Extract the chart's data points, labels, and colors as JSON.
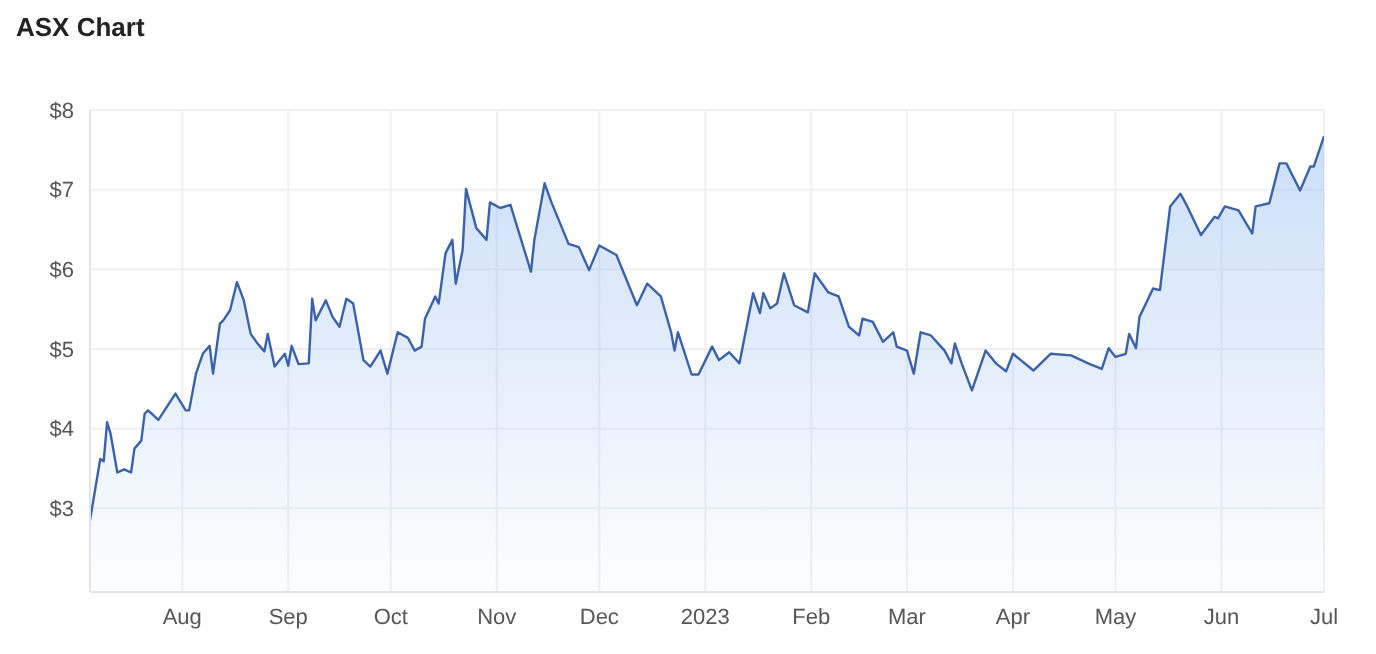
{
  "chart_data": {
    "type": "area",
    "title": "ASX Chart",
    "x": [
      "2022-07-05",
      "2022-07-08",
      "2022-07-09",
      "2022-07-10",
      "2022-07-11",
      "2022-07-13",
      "2022-07-15",
      "2022-07-17",
      "2022-07-18",
      "2022-07-20",
      "2022-07-21",
      "2022-07-22",
      "2022-07-25",
      "2022-07-30",
      "2022-08-02",
      "2022-08-03",
      "2022-08-05",
      "2022-08-07",
      "2022-08-09",
      "2022-08-10",
      "2022-08-12",
      "2022-08-13",
      "2022-08-15",
      "2022-08-17",
      "2022-08-19",
      "2022-08-21",
      "2022-08-23",
      "2022-08-25",
      "2022-08-26",
      "2022-08-28",
      "2022-08-31",
      "2022-09-01",
      "2022-09-02",
      "2022-09-04",
      "2022-09-07",
      "2022-09-08",
      "2022-09-09",
      "2022-09-12",
      "2022-09-14",
      "2022-09-16",
      "2022-09-18",
      "2022-09-20",
      "2022-09-23",
      "2022-09-25",
      "2022-09-28",
      "2022-09-30",
      "2022-10-03",
      "2022-10-06",
      "2022-10-08",
      "2022-10-10",
      "2022-10-11",
      "2022-10-14",
      "2022-10-15",
      "2022-10-17",
      "2022-10-19",
      "2022-10-20",
      "2022-10-22",
      "2022-10-23",
      "2022-10-26",
      "2022-10-29",
      "2022-10-30",
      "2022-11-02",
      "2022-11-05",
      "2022-11-11",
      "2022-11-12",
      "2022-11-15",
      "2022-11-17",
      "2022-11-22",
      "2022-11-25",
      "2022-11-28",
      "2022-12-01",
      "2022-12-06",
      "2022-12-12",
      "2022-12-15",
      "2022-12-19",
      "2022-12-22",
      "2022-12-23",
      "2022-12-24",
      "2022-12-28",
      "2022-12-30",
      "2023-01-03",
      "2023-01-05",
      "2023-01-08",
      "2023-01-11",
      "2023-01-15",
      "2023-01-17",
      "2023-01-18",
      "2023-01-20",
      "2023-01-22",
      "2023-01-24",
      "2023-01-27",
      "2023-01-31",
      "2023-02-02",
      "2023-02-06",
      "2023-02-09",
      "2023-02-12",
      "2023-02-15",
      "2023-02-16",
      "2023-02-19",
      "2023-02-22",
      "2023-02-25",
      "2023-02-26",
      "2023-03-01",
      "2023-03-03",
      "2023-03-05",
      "2023-03-08",
      "2023-03-12",
      "2023-03-14",
      "2023-03-15",
      "2023-03-17",
      "2023-03-20",
      "2023-03-24",
      "2023-03-27",
      "2023-03-30",
      "2023-04-01",
      "2023-04-07",
      "2023-04-12",
      "2023-04-18",
      "2023-04-23",
      "2023-04-27",
      "2023-04-29",
      "2023-05-01",
      "2023-05-04",
      "2023-05-05",
      "2023-05-07",
      "2023-05-08",
      "2023-05-12",
      "2023-05-14",
      "2023-05-17",
      "2023-05-20",
      "2023-05-22",
      "2023-05-26",
      "2023-05-30",
      "2023-05-31",
      "2023-06-02",
      "2023-06-06",
      "2023-06-10",
      "2023-06-11",
      "2023-06-15",
      "2023-06-18",
      "2023-06-20",
      "2023-06-24",
      "2023-06-27",
      "2023-06-28",
      "2023-07-01"
    ],
    "series": [
      {
        "color": "#3b62a8",
        "values": [
          2.85,
          3.62,
          3.59,
          4.08,
          3.94,
          3.45,
          3.49,
          3.45,
          3.75,
          3.85,
          4.19,
          4.23,
          4.11,
          4.44,
          4.23,
          4.23,
          4.69,
          4.94,
          5.04,
          4.69,
          5.32,
          5.36,
          5.49,
          5.84,
          5.61,
          5.19,
          5.07,
          4.97,
          5.19,
          4.78,
          4.94,
          4.79,
          5.04,
          4.81,
          4.82,
          5.63,
          5.36,
          5.61,
          5.4,
          5.28,
          5.63,
          5.57,
          4.86,
          4.78,
          4.98,
          4.69,
          5.21,
          5.14,
          4.98,
          5.03,
          5.38,
          5.66,
          5.57,
          6.2,
          6.37,
          5.82,
          6.24,
          7.01,
          6.52,
          6.37,
          6.84,
          6.77,
          6.81,
          5.97,
          6.37,
          7.08,
          6.84,
          6.32,
          6.28,
          5.99,
          6.3,
          6.18,
          5.55,
          5.82,
          5.66,
          5.21,
          4.98,
          5.21,
          4.68,
          4.68,
          5.03,
          4.86,
          4.96,
          4.82,
          5.7,
          5.45,
          5.7,
          5.51,
          5.57,
          5.95,
          5.55,
          5.46,
          5.95,
          5.71,
          5.66,
          5.28,
          5.17,
          5.38,
          5.34,
          5.09,
          5.21,
          5.03,
          4.98,
          4.69,
          5.21,
          5.17,
          4.98,
          4.82,
          5.07,
          4.82,
          4.48,
          4.98,
          4.82,
          4.72,
          4.94,
          4.73,
          4.94,
          4.92,
          4.82,
          4.75,
          5.01,
          4.9,
          4.94,
          5.19,
          5.01,
          5.4,
          5.76,
          5.74,
          6.79,
          6.95,
          6.79,
          6.43,
          6.66,
          6.64,
          6.79,
          6.74,
          6.45,
          6.79,
          6.83,
          7.33,
          7.33,
          6.99,
          7.29,
          7.29,
          7.67
        ]
      }
    ],
    "xlim": [
      "2022-07-05",
      "2023-07-01"
    ],
    "xticks": [
      {
        "value": "2022-08-01",
        "label": "Aug"
      },
      {
        "value": "2022-09-01",
        "label": "Sep"
      },
      {
        "value": "2022-10-01",
        "label": "Oct"
      },
      {
        "value": "2022-11-01",
        "label": "Nov"
      },
      {
        "value": "2022-12-01",
        "label": "Dec"
      },
      {
        "value": "2023-01-01",
        "label": "2023"
      },
      {
        "value": "2023-02-01",
        "label": "Feb"
      },
      {
        "value": "2023-03-01",
        "label": "Mar"
      },
      {
        "value": "2023-04-01",
        "label": "Apr"
      },
      {
        "value": "2023-05-01",
        "label": "May"
      },
      {
        "value": "2023-06-01",
        "label": "Jun"
      },
      {
        "value": "2023-07-01",
        "label": "Jul"
      }
    ],
    "ylim": [
      1.95,
      8
    ],
    "yticks": [
      {
        "value": 3,
        "label": "$3"
      },
      {
        "value": 4,
        "label": "$4"
      },
      {
        "value": 5,
        "label": "$5"
      },
      {
        "value": 6,
        "label": "$6"
      },
      {
        "value": 7,
        "label": "$7"
      },
      {
        "value": 8,
        "label": "$8"
      }
    ],
    "grid": true,
    "marker": "none",
    "line_style": "solid"
  }
}
